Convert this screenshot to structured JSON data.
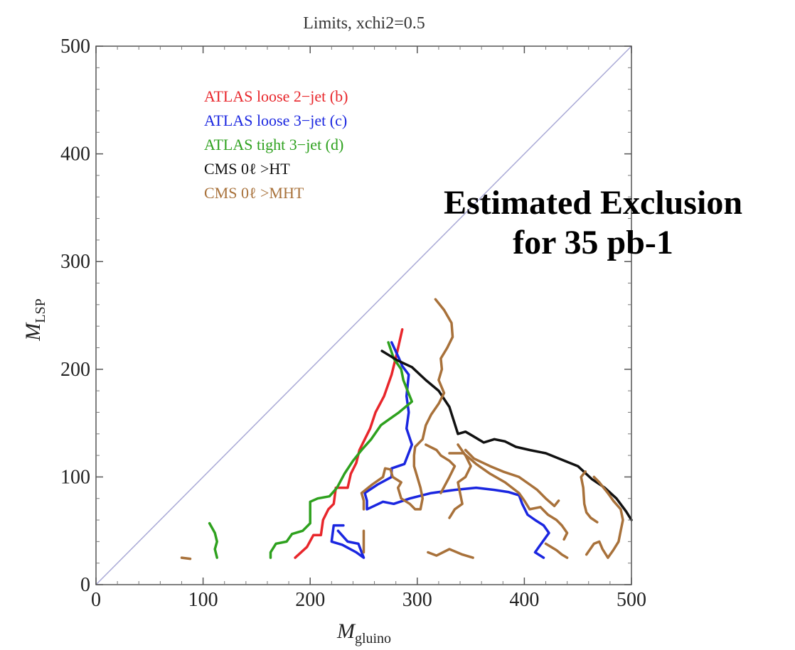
{
  "chart_data": {
    "type": "line",
    "title": "Limits, xchi2=0.5",
    "xlabel": "M",
    "xlabel_sub": "gluino",
    "ylabel": "M",
    "ylabel_sub": "LSP",
    "xlim": [
      0,
      500
    ],
    "ylim": [
      0,
      500
    ],
    "xticks": [
      "0",
      "100",
      "200",
      "300",
      "400",
      "500"
    ],
    "yticks": [
      "0",
      "100",
      "200",
      "300",
      "400",
      "500"
    ],
    "grid": false,
    "legend_position": "top-left",
    "annotation": [
      "Estimated Exclusion",
      "for 35 pb-1"
    ],
    "diagonal": {
      "x": [
        0,
        500
      ],
      "y": [
        0,
        500
      ],
      "color": "#a9a9d6"
    },
    "series": [
      {
        "name": "ATLAS loose 2−jet (b)",
        "color": "#e8262b",
        "segments": [
          [
            [
              186,
              25
            ],
            [
              197,
              35
            ],
            [
              203,
              46
            ],
            [
              210,
              46
            ],
            [
              212,
              60
            ],
            [
              217,
              70
            ],
            [
              222,
              75
            ],
            [
              224,
              90
            ],
            [
              235,
              90
            ],
            [
              238,
              103
            ],
            [
              243,
              113
            ],
            [
              246,
              125
            ],
            [
              251,
              135
            ],
            [
              256,
              145
            ],
            [
              261,
              160
            ],
            [
              269,
              175
            ],
            [
              276,
              195
            ],
            [
              281,
              215
            ],
            [
              286,
              237
            ]
          ]
        ]
      },
      {
        "name": "ATLAS loose 3−jet (c)",
        "color": "#1a26e0",
        "segments": [
          [
            [
              276,
              225
            ],
            [
              283,
              210
            ],
            [
              286,
              203
            ],
            [
              292,
              195
            ],
            [
              290,
              175
            ],
            [
              292,
              160
            ],
            [
              290,
              145
            ],
            [
              295,
              130
            ],
            [
              288,
              112
            ],
            [
              276,
              108
            ],
            [
              276,
              100
            ],
            [
              263,
              93
            ],
            [
              251,
              85
            ],
            [
              253,
              78
            ],
            [
              253,
              70
            ],
            [
              268,
              77
            ],
            [
              278,
              75
            ],
            [
              293,
              80
            ],
            [
              313,
              85
            ],
            [
              335,
              88
            ],
            [
              355,
              90
            ],
            [
              372,
              88
            ],
            [
              385,
              86
            ],
            [
              395,
              83
            ],
            [
              398,
              75
            ],
            [
              403,
              65
            ],
            [
              410,
              60
            ],
            [
              418,
              55
            ],
            [
              423,
              48
            ],
            [
              415,
              37
            ],
            [
              410,
              30
            ],
            [
              418,
              25
            ]
          ],
          [
            [
              226,
              50
            ],
            [
              235,
              40
            ],
            [
              245,
              38
            ],
            [
              250,
              25
            ],
            [
              243,
              30
            ],
            [
              230,
              37
            ],
            [
              220,
              40
            ],
            [
              222,
              55
            ],
            [
              231,
              55
            ]
          ]
        ]
      },
      {
        "name": "ATLAS tight 3−jet (d)",
        "color": "#2ea11e",
        "segments": [
          [
            [
              273,
              225
            ],
            [
              278,
              210
            ],
            [
              285,
              200
            ],
            [
              287,
              190
            ],
            [
              291,
              180
            ],
            [
              295,
              170
            ],
            [
              283,
              160
            ],
            [
              273,
              153
            ],
            [
              266,
              148
            ],
            [
              257,
              135
            ],
            [
              248,
              125
            ],
            [
              240,
              115
            ],
            [
              232,
              103
            ],
            [
              225,
              90
            ],
            [
              218,
              82
            ],
            [
              207,
              80
            ],
            [
              200,
              77
            ],
            [
              200,
              57
            ],
            [
              193,
              50
            ],
            [
              183,
              47
            ],
            [
              178,
              40
            ],
            [
              168,
              38
            ],
            [
              163,
              30
            ],
            [
              163,
              25
            ]
          ],
          [
            [
              106,
              57
            ],
            [
              111,
              48
            ],
            [
              113,
              40
            ],
            [
              111,
              33
            ],
            [
              113,
              25
            ]
          ]
        ]
      },
      {
        "name": "CMS 0ℓ >HT",
        "color": "#111111",
        "segments": [
          [
            [
              267,
              217
            ],
            [
              282,
              208
            ],
            [
              295,
              202
            ],
            [
              308,
              190
            ],
            [
              320,
              180
            ],
            [
              330,
              165
            ],
            [
              338,
              140
            ],
            [
              345,
              142
            ],
            [
              352,
              138
            ],
            [
              362,
              132
            ],
            [
              372,
              135
            ],
            [
              382,
              133
            ],
            [
              392,
              128
            ],
            [
              405,
              125
            ],
            [
              420,
              122
            ],
            [
              435,
              116
            ],
            [
              450,
              110
            ],
            [
              463,
              98
            ],
            [
              475,
              90
            ],
            [
              486,
              80
            ],
            [
              495,
              68
            ],
            [
              500,
              60
            ]
          ]
        ]
      },
      {
        "name": "CMS 0ℓ >MHT",
        "color": "#a8713a",
        "segments": [
          [
            [
              317,
              265
            ],
            [
              325,
              255
            ],
            [
              332,
              243
            ],
            [
              333,
              230
            ],
            [
              328,
              220
            ],
            [
              322,
              210
            ],
            [
              323,
              200
            ],
            [
              320,
              190
            ],
            [
              325,
              178
            ],
            [
              320,
              168
            ],
            [
              313,
              158
            ],
            [
              308,
              148
            ],
            [
              305,
              135
            ],
            [
              298,
              128
            ],
            [
              297,
              120
            ],
            [
              297,
              110
            ],
            [
              300,
              100
            ],
            [
              303,
              90
            ],
            [
              305,
              80
            ],
            [
              303,
              70
            ],
            [
              298,
              70
            ],
            [
              293,
              75
            ],
            [
              285,
              80
            ],
            [
              282,
              90
            ],
            [
              285,
              95
            ],
            [
              277,
              100
            ],
            [
              275,
              107
            ],
            [
              270,
              108
            ],
            [
              268,
              100
            ],
            [
              258,
              93
            ],
            [
              248,
              85
            ],
            [
              250,
              78
            ],
            [
              250,
              70
            ]
          ],
          [
            [
              338,
              130
            ],
            [
              345,
              120
            ],
            [
              350,
              110
            ],
            [
              345,
              100
            ],
            [
              338,
              95
            ],
            [
              340,
              85
            ],
            [
              342,
              75
            ],
            [
              335,
              70
            ],
            [
              330,
              62
            ]
          ],
          [
            [
              322,
              85
            ],
            [
              330,
              100
            ],
            [
              335,
              110
            ],
            [
              330,
              115
            ],
            [
              322,
              120
            ],
            [
              318,
              125
            ],
            [
              308,
              130
            ]
          ],
          [
            [
              330,
              122
            ],
            [
              343,
              122
            ],
            [
              348,
              118
            ],
            [
              355,
              112
            ],
            [
              368,
              103
            ],
            [
              382,
              95
            ],
            [
              395,
              85
            ],
            [
              400,
              78
            ],
            [
              405,
              70
            ],
            [
              415,
              72
            ],
            [
              422,
              65
            ],
            [
              430,
              60
            ],
            [
              435,
              55
            ],
            [
              440,
              48
            ],
            [
              437,
              42
            ]
          ],
          [
            [
              345,
              125
            ],
            [
              353,
              117
            ],
            [
              368,
              110
            ],
            [
              380,
              105
            ],
            [
              395,
              100
            ],
            [
              405,
              93
            ],
            [
              412,
              88
            ],
            [
              420,
              80
            ],
            [
              428,
              73
            ],
            [
              432,
              78
            ]
          ],
          [
            [
              310,
              30
            ],
            [
              318,
              27
            ],
            [
              330,
              33
            ],
            [
              342,
              28
            ],
            [
              352,
              25
            ]
          ],
          [
            [
              420,
              38
            ],
            [
              430,
              32
            ],
            [
              435,
              28
            ],
            [
              440,
              25
            ]
          ],
          [
            [
              465,
              100
            ],
            [
              470,
              95
            ],
            [
              478,
              85
            ],
            [
              483,
              78
            ],
            [
              490,
              70
            ],
            [
              492,
              60
            ],
            [
              490,
              50
            ],
            [
              488,
              40
            ],
            [
              483,
              32
            ],
            [
              478,
              25
            ],
            [
              473,
              33
            ],
            [
              470,
              40
            ],
            [
              465,
              38
            ],
            [
              458,
              28
            ]
          ],
          [
            [
              468,
              58
            ],
            [
              462,
              62
            ],
            [
              458,
              67
            ],
            [
              456,
              75
            ],
            [
              455,
              90
            ],
            [
              453,
              100
            ],
            [
              457,
              105
            ]
          ],
          [
            [
              80,
              25
            ],
            [
              88,
              24
            ]
          ],
          [
            [
              250,
              50
            ],
            [
              250,
              30
            ]
          ]
        ]
      }
    ]
  }
}
